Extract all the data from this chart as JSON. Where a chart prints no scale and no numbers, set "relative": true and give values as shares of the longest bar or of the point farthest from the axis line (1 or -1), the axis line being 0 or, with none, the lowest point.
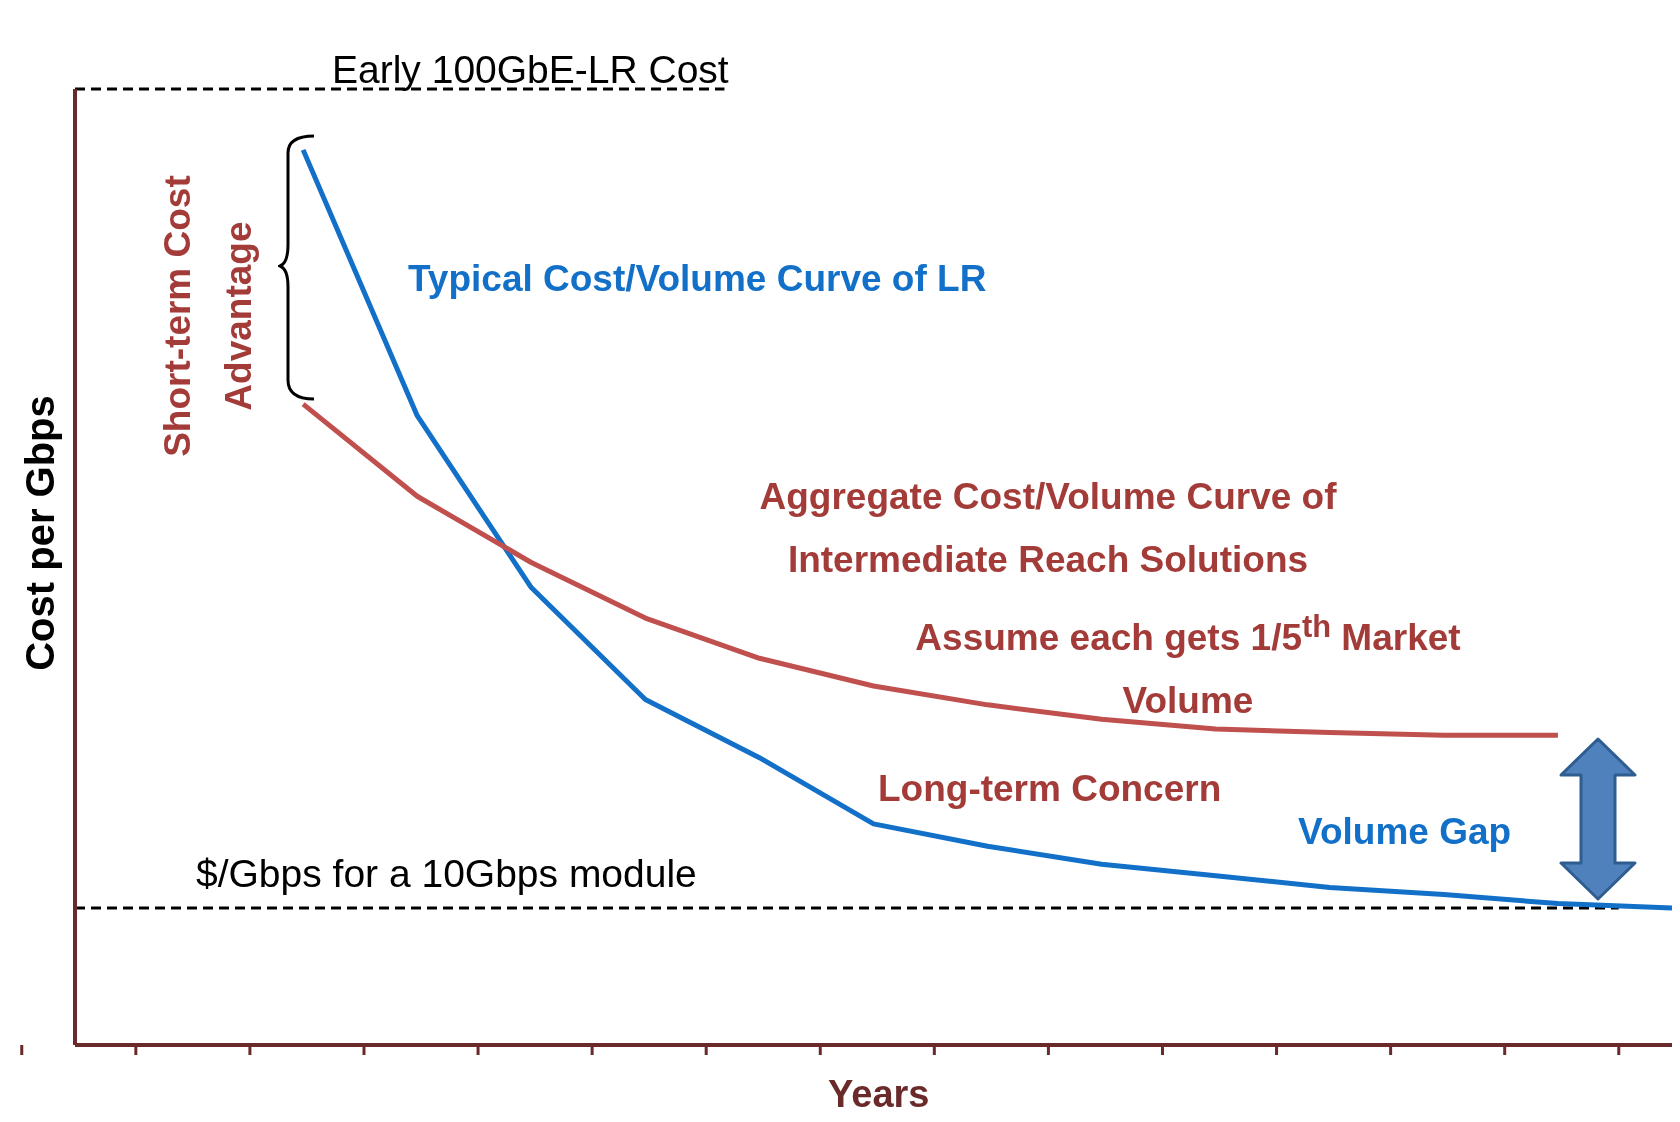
{
  "chart_data": {
    "type": "line",
    "relative": true,
    "xlabel": "Years",
    "ylabel": "Cost per Gbps",
    "legend": false,
    "marker": "none",
    "categories": [
      null,
      null,
      null,
      null,
      null,
      null,
      null,
      null,
      null,
      null,
      null,
      null,
      null,
      null,
      null
    ],
    "series": [
      {
        "name": "Typical Cost/Volume Curve of LR",
        "color": "#1270c8",
        "line_style": "solid",
        "values": [
          null,
          null,
          1,
          0.703,
          0.511,
          0.386,
          0.321,
          0.247,
          0.222,
          0.202,
          0.189,
          0.176,
          0.168,
          0.158,
          0.153
        ]
      },
      {
        "name": "Aggregate Cost/Volume Curve of Intermediate Reach Solutions",
        "color": "#c0504d",
        "line_style": "solid",
        "values": [
          null,
          null,
          0.716,
          0.613,
          0.539,
          0.477,
          0.432,
          0.401,
          0.38,
          0.364,
          0.353,
          0.349,
          0.346,
          0.346,
          null
        ]
      }
    ],
    "ref_lines": [
      {
        "axis": "y",
        "value": 1.068,
        "label": "Early 100GbE-LR Cost",
        "color": "#000000",
        "line_style": "dashed"
      },
      {
        "axis": "y",
        "value": 0.153,
        "label": "$/Gbps for a 10Gbps module",
        "color": "#000000",
        "line_style": "dashed"
      }
    ],
    "annotations": [
      "Short-term Cost Advantage",
      "Assume each gets 1/5$^{th}$ Market Volume",
      "Long-term Concern",
      "Volume Gap"
    ]
  }
}
